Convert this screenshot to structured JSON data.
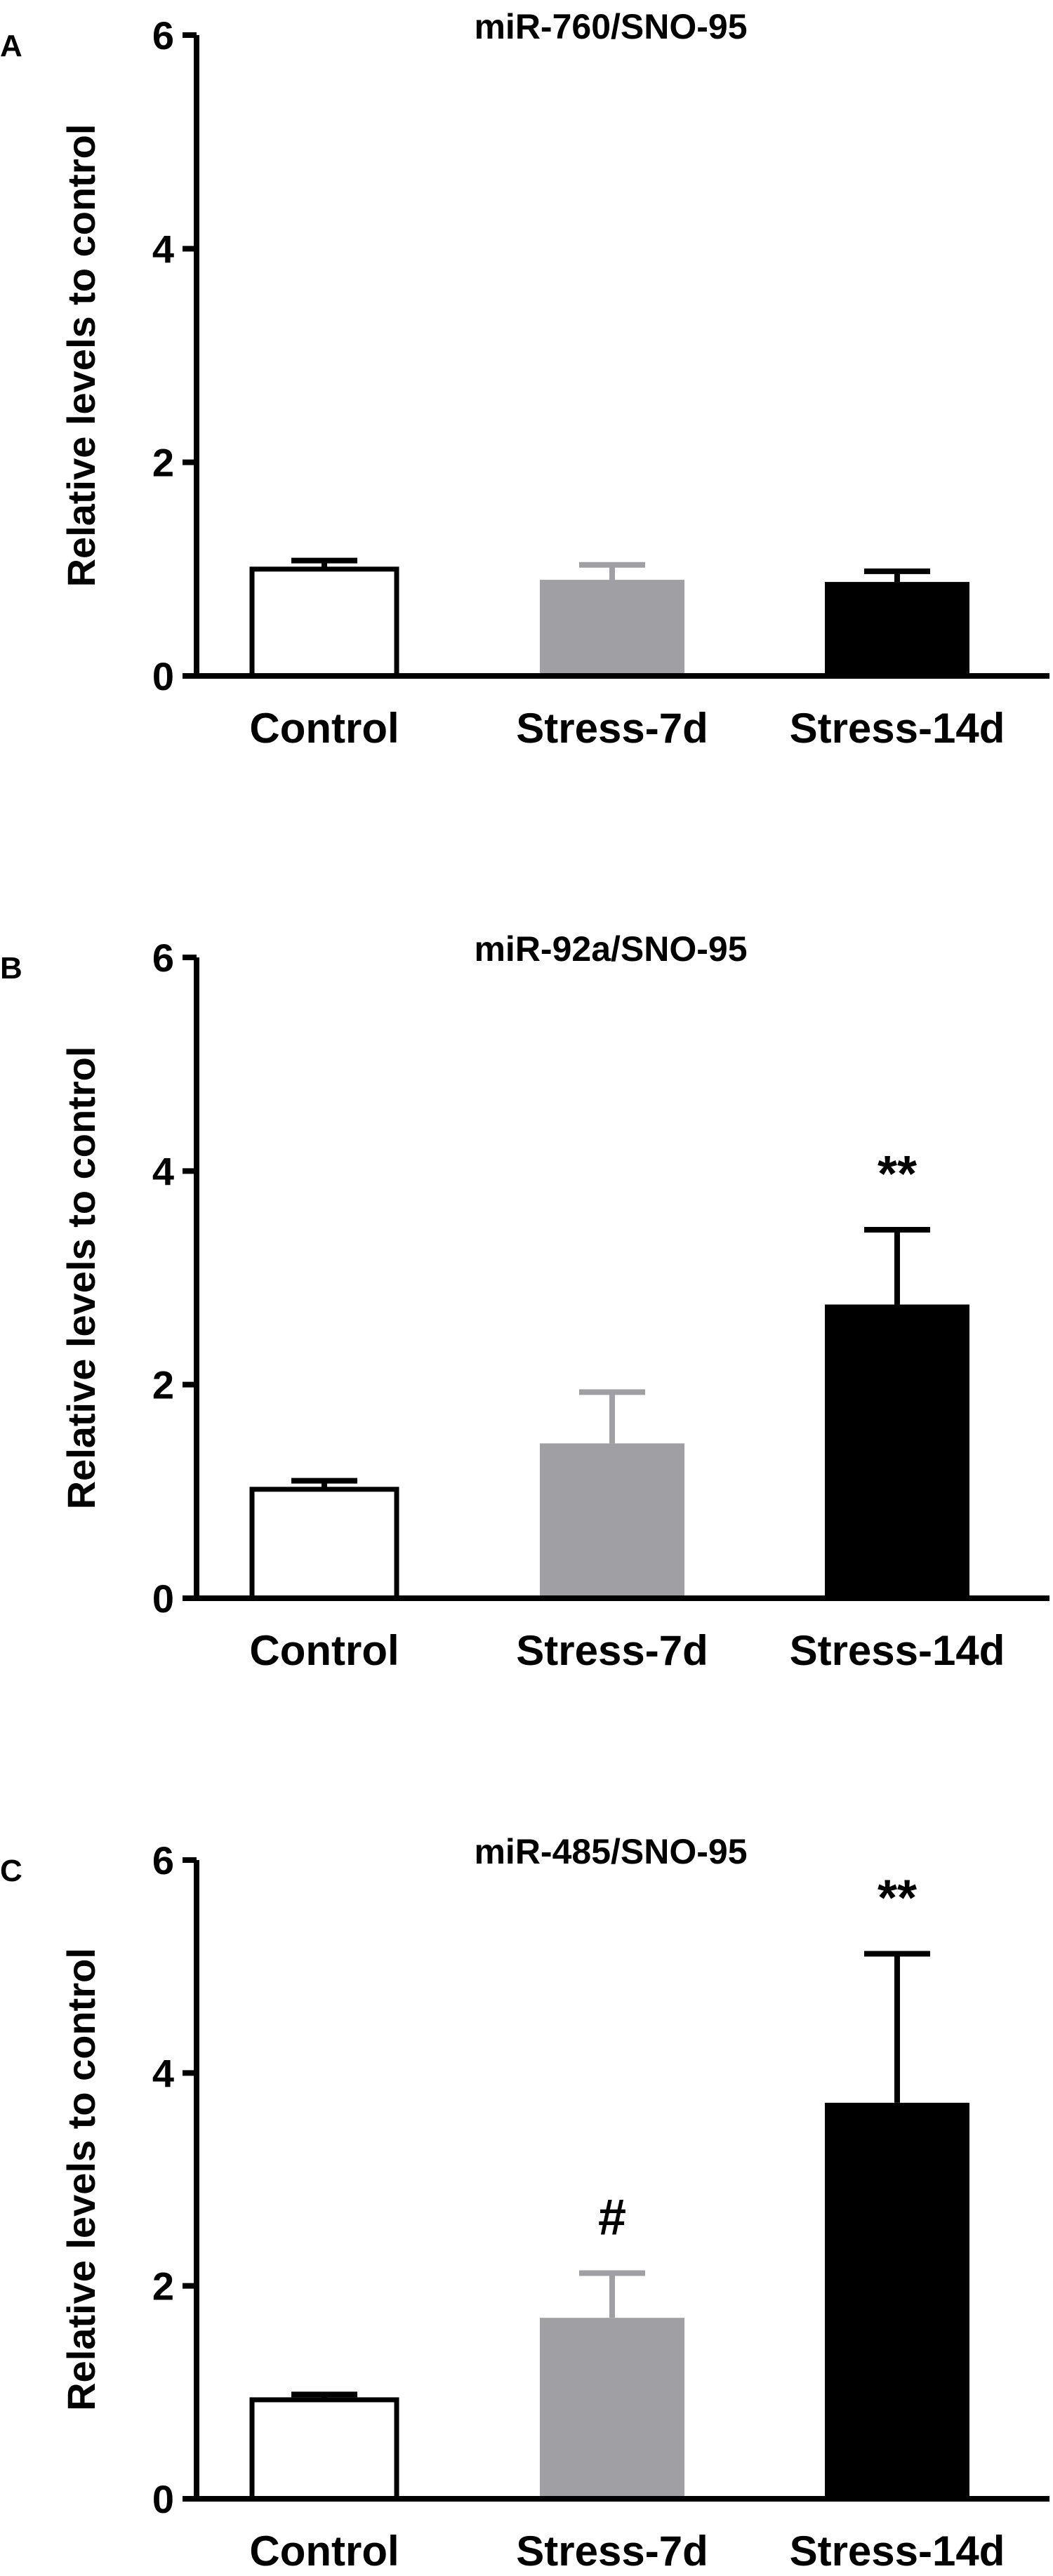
{
  "chart_data": [
    {
      "type": "bar",
      "panel": "A",
      "title": "miR-760/SNO-95",
      "ylabel": "Relative levels to control",
      "categories": [
        "Control",
        "Stress-7d",
        "Stress-14d"
      ],
      "values": [
        1.0,
        0.9,
        0.88
      ],
      "errors": [
        0.08,
        0.14,
        0.1
      ],
      "colors": [
        "#ffffff",
        "#a0a0a4",
        "#000000"
      ],
      "annotations": [
        "",
        "",
        ""
      ],
      "ylim": [
        0,
        6
      ],
      "yticks": [
        "0",
        "2",
        "4",
        "6"
      ]
    },
    {
      "type": "bar",
      "panel": "B",
      "title": "miR-92a/SNO-95",
      "ylabel": "Relative levels to control",
      "categories": [
        "Control",
        "Stress-7d",
        "Stress-14d"
      ],
      "values": [
        1.02,
        1.45,
        2.75
      ],
      "errors": [
        0.08,
        0.48,
        0.7
      ],
      "colors": [
        "#ffffff",
        "#a0a0a4",
        "#000000"
      ],
      "annotations": [
        "",
        "",
        "**"
      ],
      "ylim": [
        0,
        6
      ],
      "yticks": [
        "0",
        "2",
        "4",
        "6"
      ]
    },
    {
      "type": "bar",
      "panel": "C",
      "title": "miR-485/SNO-95",
      "ylabel": "Relative levels to control",
      "categories": [
        "Control",
        "Stress-7d",
        "Stress-14d"
      ],
      "values": [
        0.93,
        1.7,
        3.72
      ],
      "errors": [
        0.05,
        0.42,
        1.4
      ],
      "colors": [
        "#ffffff",
        "#a0a0a4",
        "#000000"
      ],
      "annotations": [
        "",
        "#",
        "**"
      ],
      "ylim": [
        0,
        6
      ],
      "yticks": [
        "0",
        "2",
        "4",
        "6"
      ]
    }
  ]
}
